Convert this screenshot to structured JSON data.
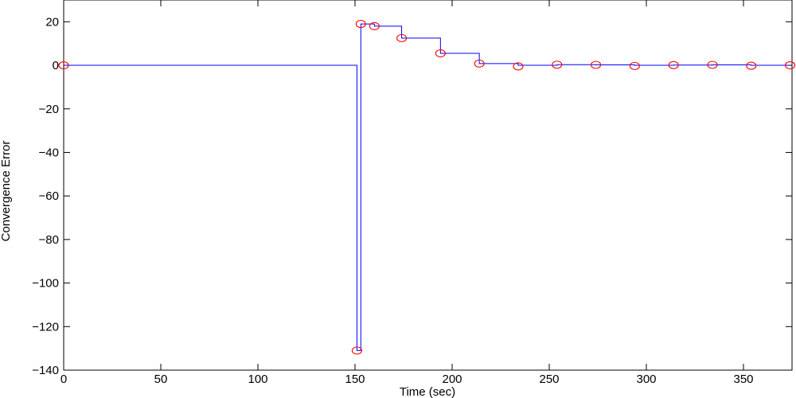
{
  "chart_data": {
    "type": "line",
    "title": "",
    "xlabel": "Time (sec)",
    "ylabel": "Convergence Error",
    "xlim": [
      0,
      375
    ],
    "ylim": [
      -140,
      30
    ],
    "xticks": [
      0,
      50,
      100,
      150,
      200,
      250,
      300,
      350
    ],
    "yticks": [
      20,
      0,
      -20,
      -40,
      -60,
      -80,
      -100,
      -120,
      -140
    ],
    "grid": false,
    "colors": {
      "line": "#0000ff",
      "markers": "#ff0000",
      "axes": "#000000"
    },
    "series": [
      {
        "style": "step",
        "x": [
          0,
          151,
          153,
          160,
          174,
          194,
          214,
          234,
          254,
          274,
          294,
          314,
          334,
          354,
          374
        ],
        "y": [
          0,
          -131,
          19,
          18,
          12.5,
          5.5,
          0.8,
          0,
          0.3,
          0.2,
          0,
          0.1,
          0.2,
          0,
          0
        ]
      },
      {
        "style": "markers",
        "marker": "circle",
        "x": [
          0,
          151,
          153,
          160,
          174,
          194,
          214,
          234,
          254,
          274,
          294,
          314,
          334,
          354,
          374
        ],
        "y": [
          0,
          -131,
          19,
          18,
          12.5,
          5.5,
          0.8,
          -0.5,
          0.3,
          0.2,
          -0.3,
          0.1,
          0.2,
          -0.2,
          0
        ]
      }
    ]
  }
}
